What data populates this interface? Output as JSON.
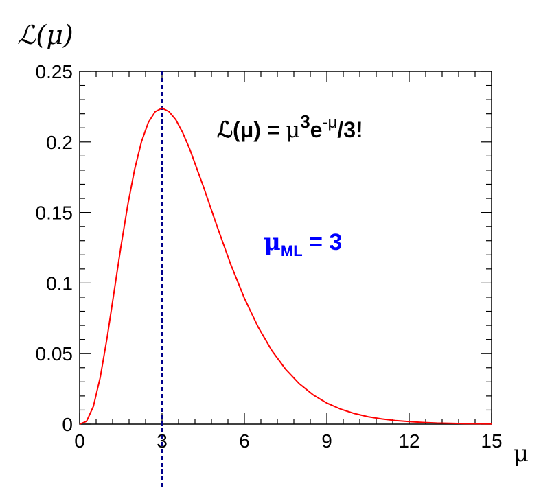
{
  "chart_data": {
    "type": "line",
    "xlabel": "μ",
    "ylabel": "ℒ(μ)",
    "xlim": [
      0,
      15
    ],
    "ylim": [
      0,
      0.25
    ],
    "xticks": [
      "0",
      "3",
      "6",
      "9",
      "12",
      "15"
    ],
    "yticks": [
      "0",
      "0.05",
      "0.1",
      "0.15",
      "0.2",
      "0.25"
    ],
    "grid": false,
    "series": [
      {
        "color": "#ff0000",
        "x": [
          0,
          0.25,
          0.5,
          0.75,
          1,
          1.25,
          1.5,
          1.75,
          2,
          2.25,
          2.5,
          2.75,
          3,
          3.25,
          3.5,
          3.75,
          4,
          4.5,
          5,
          5.5,
          6,
          6.5,
          7,
          7.5,
          8,
          8.5,
          9,
          9.5,
          10,
          10.5,
          11,
          11.5,
          12,
          12.5,
          13,
          13.5,
          14,
          14.5,
          15
        ],
        "y": [
          0,
          0.002,
          0.0126,
          0.0332,
          0.0613,
          0.0933,
          0.1255,
          0.1551,
          0.1804,
          0.2001,
          0.2138,
          0.2215,
          0.224,
          0.2216,
          0.2158,
          0.2067,
          0.1954,
          0.1687,
          0.1404,
          0.1133,
          0.0892,
          0.0688,
          0.0521,
          0.0389,
          0.0286,
          0.0208,
          0.015,
          0.0107,
          0.0076,
          0.0053,
          0.0037,
          0.0026,
          0.0018,
          0.0012,
          0.0008,
          0.0006,
          0.0004,
          0.0003,
          0.0002
        ]
      }
    ],
    "annotations": {
      "formula": {
        "L": "ℒ(μ) = ",
        "mu": "μ",
        "exp1": "3",
        "e": "e",
        "exp2": "-μ",
        "tail": "/3!"
      },
      "ml": {
        "mu": "μ",
        "sub": "ML",
        "rest": " = 3",
        "color": "#0000ff"
      },
      "vline": {
        "x": 3,
        "color": "#00008b"
      }
    }
  }
}
